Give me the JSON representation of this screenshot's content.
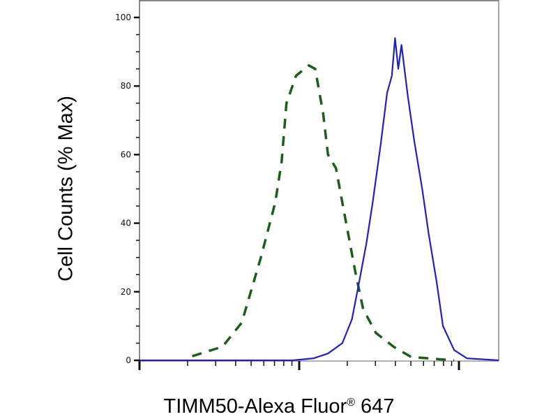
{
  "chart_data": {
    "type": "line",
    "title": "",
    "xlabel": "TIMM50-Alexa Fluor",
    "xlabel_mark": "®",
    "xlabel_suffix": " 647",
    "ylabel": "Cell Counts (% Max)",
    "x_scale": "log",
    "x_tick_labels_shown": false,
    "xlim_decades": [
      0,
      2.25
    ],
    "ylim": [
      0,
      100
    ],
    "yticks": [
      0,
      20,
      40,
      60,
      80,
      100
    ],
    "grid": false,
    "colors": {
      "control": "#1b5e1b",
      "sample": "#1f1fc8"
    },
    "series": [
      {
        "style": "dashed",
        "color": "#1b5e1b",
        "x": [
          0.33,
          0.52,
          0.64,
          0.76,
          0.85,
          0.89,
          0.92,
          0.98,
          1.06,
          1.1,
          1.15,
          1.18,
          1.23,
          1.27,
          1.31,
          1.35,
          1.4,
          1.48,
          1.59,
          1.7,
          1.88,
          1.97
        ],
        "y": [
          1.2,
          4,
          11,
          30,
          46,
          58,
          75,
          83,
          86,
          85,
          72,
          60,
          56,
          46,
          36,
          26,
          15,
          8,
          4,
          1,
          0.3,
          0
        ]
      },
      {
        "style": "solid",
        "color": "#1f1fc8",
        "x": [
          0,
          0.96,
          1.09,
          1.18,
          1.27,
          1.33,
          1.38,
          1.42,
          1.46,
          1.51,
          1.55,
          1.58,
          1.6,
          1.62,
          1.64,
          1.68,
          1.72,
          1.77,
          1.81,
          1.86,
          1.9,
          1.97,
          2.05,
          2.25
        ],
        "y": [
          0,
          0,
          0.6,
          2,
          5,
          12,
          24,
          34,
          46,
          63,
          78,
          83,
          94,
          85,
          92,
          77,
          64,
          50,
          37,
          23,
          10,
          3,
          0.6,
          0
        ]
      }
    ]
  }
}
